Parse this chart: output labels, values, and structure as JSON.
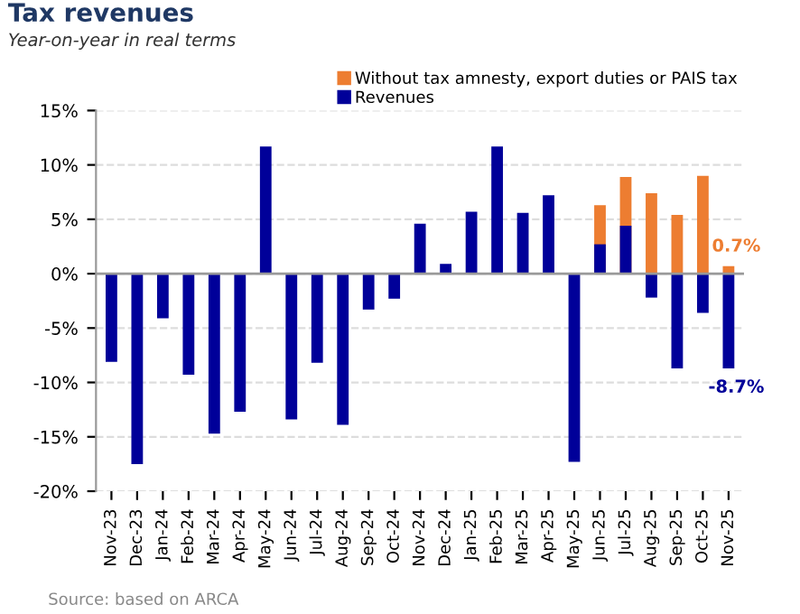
{
  "chart_data": {
    "type": "bar",
    "title": "Tax revenues",
    "subtitle": "Year-on-year in real terms",
    "categories": [
      "Nov-23",
      "Dec-23",
      "Jan-24",
      "Feb-24",
      "Mar-24",
      "Apr-24",
      "May-24",
      "Jun-24",
      "Jul-24",
      "Aug-24",
      "Sep-24",
      "Oct-24",
      "Nov-24",
      "Dec-24",
      "Jan-25",
      "Feb-25",
      "Mar-25",
      "Apr-25",
      "May-25",
      "Jun-25",
      "Jul-25",
      "Aug-25",
      "Sep-25",
      "Oct-25",
      "Nov-25"
    ],
    "series": [
      {
        "name": "Without tax amnesty, export duties or PAIS tax",
        "color": "#ed7d31",
        "values": [
          null,
          null,
          null,
          null,
          null,
          null,
          null,
          null,
          null,
          null,
          null,
          null,
          null,
          null,
          null,
          null,
          null,
          null,
          null,
          6.3,
          8.9,
          7.4,
          5.4,
          9.0,
          0.7
        ],
        "value_labels": [
          null,
          null,
          null,
          null,
          null,
          null,
          null,
          null,
          null,
          null,
          null,
          null,
          null,
          null,
          null,
          null,
          null,
          null,
          null,
          null,
          null,
          null,
          null,
          null,
          "0.7%"
        ]
      },
      {
        "name": "Revenues",
        "color": "#000099",
        "values": [
          -8.1,
          -17.5,
          -4.1,
          -9.3,
          -14.7,
          -12.7,
          11.7,
          -13.4,
          -8.2,
          -13.9,
          -3.3,
          -2.3,
          4.6,
          0.9,
          5.7,
          11.7,
          5.6,
          7.2,
          -17.3,
          2.7,
          4.4,
          -2.2,
          -8.7,
          -3.6,
          -8.7
        ],
        "value_labels": [
          null,
          null,
          null,
          null,
          null,
          null,
          null,
          null,
          null,
          null,
          null,
          null,
          null,
          null,
          null,
          null,
          null,
          null,
          null,
          null,
          null,
          null,
          null,
          null,
          "-8.7%"
        ]
      }
    ],
    "ylim": [
      -20,
      15
    ],
    "yticks": [
      {
        "value": -20,
        "label": "-20%"
      },
      {
        "value": -15,
        "label": "-15%"
      },
      {
        "value": -10,
        "label": "-10%"
      },
      {
        "value": -5,
        "label": "-5%"
      },
      {
        "value": 0,
        "label": "0%"
      },
      {
        "value": 5,
        "label": "5%"
      },
      {
        "value": 10,
        "label": "10%"
      },
      {
        "value": 15,
        "label": "15%"
      }
    ],
    "grid": "y",
    "legend": "top right",
    "annotations": [
      "Source: based on ARCA"
    ]
  }
}
